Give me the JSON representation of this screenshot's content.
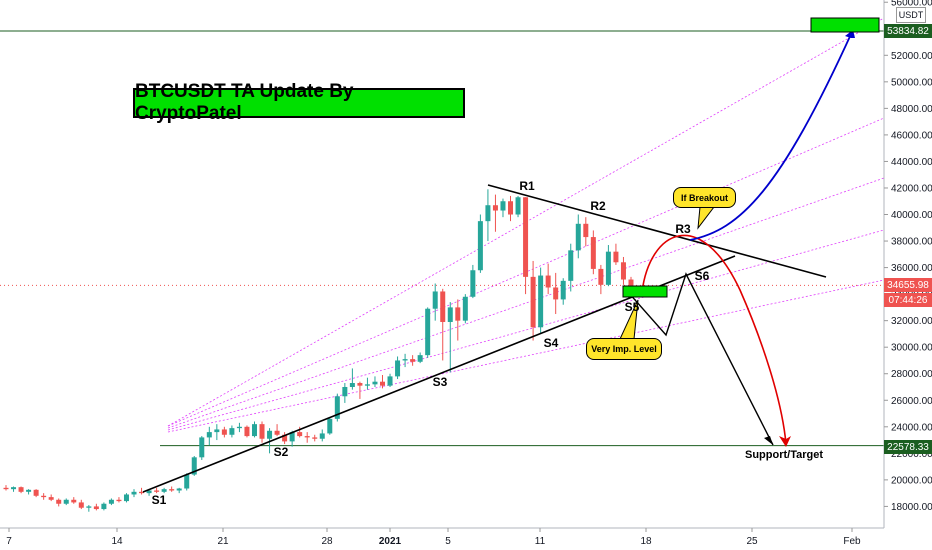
{
  "title": "BTCUSDT TA Update By CryptoPatel",
  "unit": "USDT",
  "callouts": {
    "breakout": "If Breakout",
    "level": "Very Imp. Level"
  },
  "tags": {
    "target_high": "53834.82",
    "current_price": "34655.98",
    "countdown": "07:44:26",
    "support": "22578.33"
  },
  "support_label": "Support/Target",
  "colors": {
    "bull": "#26a69a",
    "bear": "#ef5350",
    "highlight_box": "#00e000",
    "callout": "#ffe52b",
    "breakout_path": "#0000cc",
    "breakdown_path": "#e00000",
    "level_line": "#1b5e20",
    "fan_lines": "#e040fb"
  },
  "chart_data": {
    "type": "candlestick",
    "title": "BTCUSDT TA Update By CryptoPatel",
    "y_unit": "USDT",
    "ylim": [
      16500,
      56500
    ],
    "y_ticks": [
      18000,
      20000,
      22000,
      24000,
      26000,
      28000,
      30000,
      32000,
      34000,
      36000,
      38000,
      40000,
      42000,
      44000,
      46000,
      48000,
      50000,
      52000,
      56000
    ],
    "x_ticks": [
      "7",
      "14",
      "21",
      "28",
      "2021",
      "5",
      "11",
      "18",
      "25",
      "Feb"
    ],
    "levels": [
      {
        "name": "target",
        "price": 53834.82
      },
      {
        "name": "support",
        "price": 22578.33
      },
      {
        "name": "current",
        "price": 34655.98
      }
    ],
    "points": [
      {
        "label": "S1",
        "price": 19200
      },
      {
        "label": "S2",
        "price": 22500
      },
      {
        "label": "S3",
        "price": 27800
      },
      {
        "label": "S4",
        "price": 31000
      },
      {
        "label": "S5",
        "price": 33500
      },
      {
        "label": "S6",
        "price": 35300
      },
      {
        "label": "R1",
        "price": 42000
      },
      {
        "label": "R2",
        "price": 39800
      },
      {
        "label": "R3",
        "price": 38200
      }
    ],
    "candles": [
      [
        0,
        19400,
        19600,
        19200,
        19300
      ],
      [
        1,
        19300,
        19500,
        19100,
        19450
      ],
      [
        2,
        19450,
        19500,
        19000,
        19100
      ],
      [
        3,
        19100,
        19300,
        18900,
        19250
      ],
      [
        4,
        19250,
        19300,
        18700,
        18800
      ],
      [
        5,
        18800,
        19000,
        18500,
        18700
      ],
      [
        6,
        18700,
        18900,
        18400,
        18500
      ],
      [
        7,
        18500,
        18600,
        18000,
        18200
      ],
      [
        8,
        18200,
        18600,
        18100,
        18500
      ],
      [
        9,
        18500,
        18700,
        18200,
        18300
      ],
      [
        10,
        18300,
        18500,
        17800,
        17900
      ],
      [
        11,
        17900,
        18100,
        17600,
        18000
      ],
      [
        12,
        18000,
        18200,
        17700,
        17800
      ],
      [
        13,
        17800,
        18300,
        17700,
        18200
      ],
      [
        14,
        18200,
        18600,
        18100,
        18500
      ],
      [
        15,
        18500,
        18700,
        18300,
        18400
      ],
      [
        16,
        18400,
        19000,
        18300,
        18900
      ],
      [
        17,
        18900,
        19300,
        18700,
        19100
      ],
      [
        18,
        19100,
        19400,
        18900,
        19000
      ],
      [
        19,
        19000,
        19300,
        18800,
        19200
      ],
      [
        20,
        19200,
        19400,
        19000,
        19100
      ],
      [
        21,
        19100,
        19400,
        19000,
        19300
      ],
      [
        22,
        19300,
        19500,
        19100,
        19200
      ],
      [
        23,
        19200,
        19400,
        19000,
        19350
      ],
      [
        24,
        19350,
        20500,
        19200,
        20400
      ],
      [
        25,
        20400,
        21800,
        20300,
        21700
      ],
      [
        26,
        21700,
        23300,
        21500,
        23200
      ],
      [
        27,
        23200,
        24000,
        22600,
        23600
      ],
      [
        28,
        23600,
        24200,
        23000,
        23800
      ],
      [
        29,
        23800,
        24000,
        23200,
        23400
      ],
      [
        30,
        23400,
        24100,
        23200,
        23900
      ],
      [
        31,
        23900,
        24300,
        23600,
        24000
      ],
      [
        32,
        24000,
        24100,
        23200,
        23300
      ],
      [
        33,
        23300,
        24400,
        23200,
        24200
      ],
      [
        34,
        24200,
        24400,
        22800,
        23100
      ],
      [
        35,
        23100,
        23900,
        22000,
        23700
      ],
      [
        36,
        23700,
        24200,
        23300,
        23400
      ],
      [
        37,
        23400,
        23600,
        22700,
        22900
      ],
      [
        38,
        22900,
        23700,
        22500,
        23600
      ],
      [
        39,
        23600,
        24000,
        23200,
        23300
      ],
      [
        40,
        23300,
        23600,
        22800,
        23200
      ],
      [
        41,
        23200,
        23400,
        22900,
        23100
      ],
      [
        42,
        23100,
        23800,
        22900,
        23500
      ],
      [
        43,
        23500,
        24700,
        23400,
        24600
      ],
      [
        44,
        24600,
        26500,
        24400,
        26300
      ],
      [
        45,
        26300,
        27300,
        25800,
        27000
      ],
      [
        46,
        27000,
        28400,
        26800,
        27300
      ],
      [
        47,
        27300,
        27400,
        26100,
        27100
      ],
      [
        48,
        27100,
        27700,
        26800,
        27200
      ],
      [
        49,
        27200,
        27800,
        27000,
        27400
      ],
      [
        50,
        27400,
        27900,
        26900,
        27100
      ],
      [
        51,
        27100,
        28000,
        27000,
        27800
      ],
      [
        52,
        27800,
        29300,
        27600,
        29000
      ],
      [
        53,
        29000,
        29500,
        28500,
        29100
      ],
      [
        54,
        29100,
        29400,
        28600,
        28900
      ],
      [
        55,
        28900,
        29600,
        28800,
        29400
      ],
      [
        56,
        29400,
        33000,
        29200,
        32900
      ],
      [
        57,
        32900,
        34800,
        32000,
        34200
      ],
      [
        58,
        34200,
        34400,
        29000,
        31900
      ],
      [
        59,
        31900,
        33400,
        28100,
        33000
      ],
      [
        60,
        33000,
        33600,
        30500,
        32000
      ],
      [
        61,
        32000,
        34000,
        31800,
        33800
      ],
      [
        62,
        33800,
        36200,
        33700,
        35800
      ],
      [
        63,
        35800,
        40000,
        35600,
        39500
      ],
      [
        64,
        39500,
        41900,
        38000,
        40700
      ],
      [
        65,
        40700,
        41500,
        38700,
        40300
      ],
      [
        66,
        40300,
        41200,
        39800,
        41000
      ],
      [
        67,
        41000,
        41400,
        39500,
        40000
      ],
      [
        68,
        40000,
        41400,
        39800,
        41300
      ],
      [
        69,
        41300,
        41300,
        34000,
        35300
      ],
      [
        70,
        35300,
        36500,
        30500,
        31500
      ],
      [
        71,
        31500,
        36000,
        31000,
        35400
      ],
      [
        72,
        35400,
        36300,
        34000,
        34500
      ],
      [
        73,
        34500,
        35600,
        32500,
        33600
      ],
      [
        74,
        33600,
        35200,
        33200,
        35000
      ],
      [
        75,
        35000,
        37800,
        34200,
        37300
      ],
      [
        76,
        37300,
        40000,
        36700,
        39300
      ],
      [
        77,
        39300,
        39800,
        37600,
        38300
      ],
      [
        78,
        38300,
        38800,
        35500,
        35900
      ],
      [
        79,
        35900,
        36200,
        34000,
        34700
      ],
      [
        80,
        34700,
        37700,
        34600,
        37200
      ],
      [
        81,
        37200,
        37800,
        36200,
        36400
      ],
      [
        82,
        36400,
        36800,
        34700,
        35100
      ],
      [
        83,
        35100,
        35300,
        34400,
        34656
      ]
    ]
  }
}
